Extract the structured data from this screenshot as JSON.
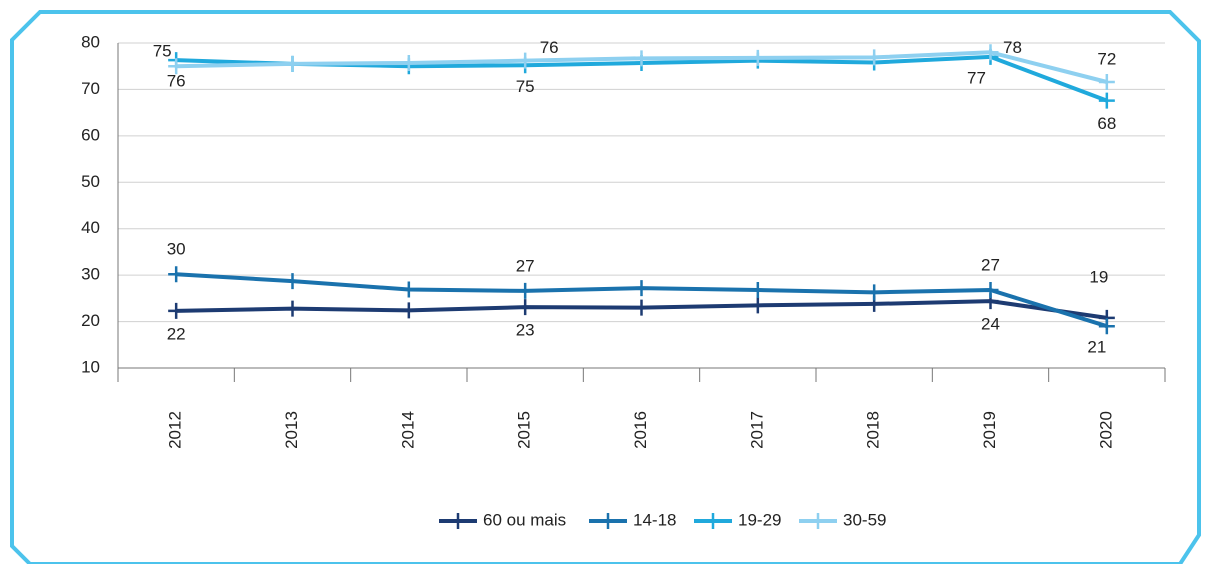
{
  "chart_data": {
    "type": "line",
    "categories": [
      "2012",
      "2013",
      "2014",
      "2015",
      "2016",
      "2017",
      "2018",
      "2019",
      "2020"
    ],
    "series": [
      {
        "name": "60 ou mais",
        "color": "#1d3b72",
        "values": [
          22.3,
          22.8,
          22.4,
          23.1,
          23.0,
          23.5,
          23.8,
          24.4,
          20.8
        ],
        "value_labels": [
          "22",
          null,
          null,
          "23",
          null,
          null,
          null,
          "24",
          "21"
        ]
      },
      {
        "name": "14-18",
        "color": "#1a72ad",
        "values": [
          30.2,
          28.7,
          26.9,
          26.6,
          27.2,
          26.8,
          26.3,
          26.8,
          19.0
        ],
        "value_labels": [
          "30",
          null,
          null,
          "27",
          null,
          null,
          null,
          "27",
          "19"
        ]
      },
      {
        "name": "19-29",
        "color": "#20a9dc",
        "values": [
          76.3,
          75.5,
          75.0,
          75.2,
          75.7,
          76.2,
          75.8,
          77.0,
          67.6
        ],
        "value_labels": [
          "76",
          null,
          null,
          "75",
          null,
          null,
          null,
          "77",
          "68"
        ]
      },
      {
        "name": "30-59",
        "color": "#8ed0f0",
        "values": [
          75.0,
          75.5,
          75.7,
          76.2,
          76.7,
          76.8,
          76.9,
          78.0,
          71.6
        ],
        "value_labels": [
          "75",
          null,
          null,
          "76",
          null,
          null,
          null,
          "78",
          "72"
        ]
      }
    ],
    "ylim": [
      10,
      80
    ],
    "yticks": [
      10,
      20,
      30,
      40,
      50,
      60,
      70,
      80
    ],
    "grid": true,
    "legend": "bottom"
  }
}
